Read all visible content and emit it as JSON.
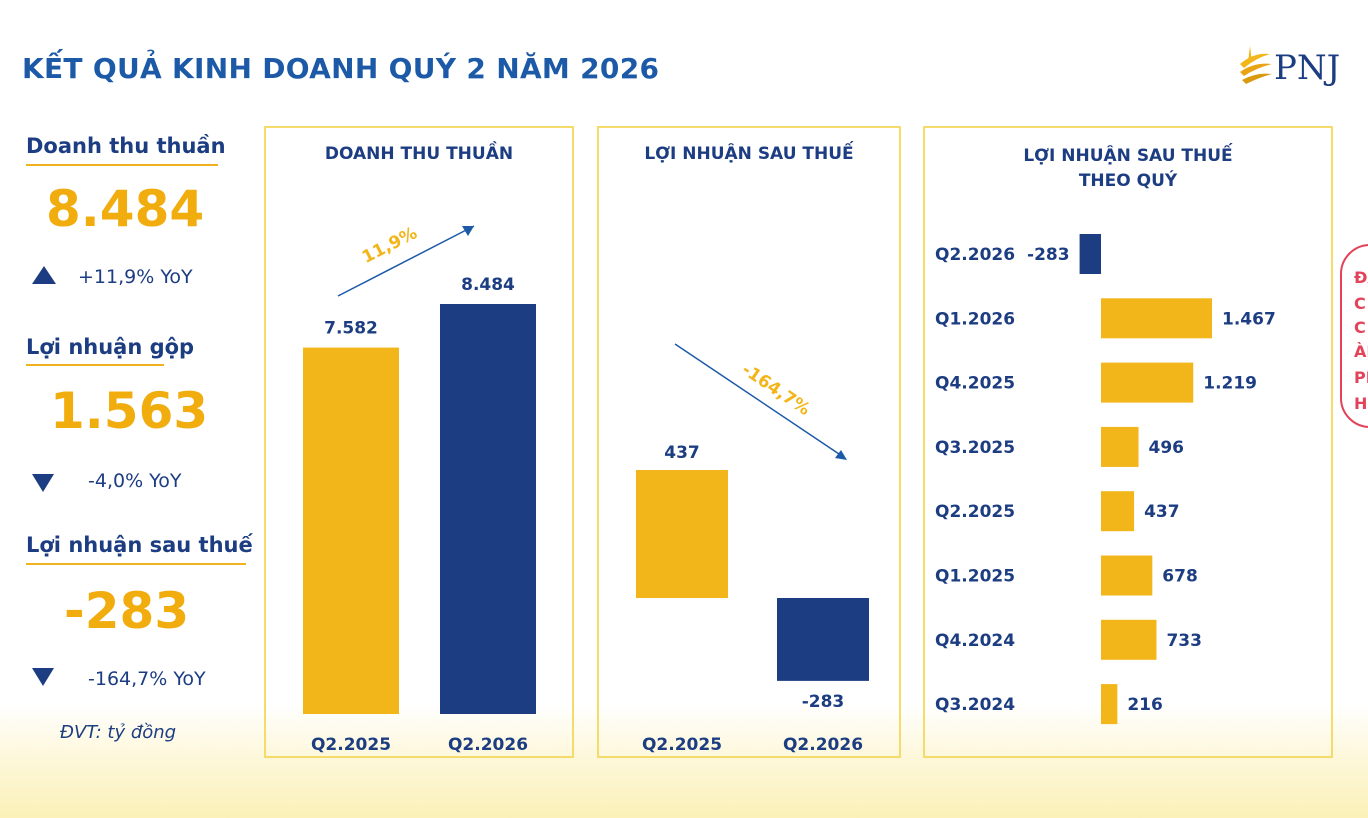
{
  "title": "KẾT QUẢ KINH DOANH QUÝ 2 NĂM 2026",
  "logo": {
    "text": "PNJ",
    "icon": "pnj-sun-logo-icon"
  },
  "colors": {
    "orange": "#F2B51A",
    "navy": "#1D3D82",
    "title_blue": "#1C5AA8",
    "panel_border": "#F5DC6A"
  },
  "metrics": [
    {
      "label": "Doanh thu thuần",
      "value": "8.484",
      "change": "+11,9% YoY",
      "direction": "up"
    },
    {
      "label": "Lợi nhuận gộp",
      "value": "1.563",
      "change": "-4,0% YoY",
      "direction": "down"
    },
    {
      "label": "Lợi nhuận sau thuế",
      "value": "-283",
      "change": "-164,7% YoY",
      "direction": "down"
    }
  ],
  "unit": "ĐVT: tỷ đồng",
  "chart_data": [
    {
      "type": "bar",
      "title": "DOANH THU THUẦN",
      "categories": [
        "Q2.2025",
        "Q2.2026"
      ],
      "values": [
        7582,
        8484
      ],
      "value_labels": [
        "7.582",
        "8.484"
      ],
      "colors": [
        "#F2B51A",
        "#1D3D82"
      ],
      "change_label": "11,9%",
      "change_direction": "up"
    },
    {
      "type": "bar",
      "title": "LỢI NHUẬN SAU THUẾ",
      "categories": [
        "Q2.2025",
        "Q2.2026"
      ],
      "values": [
        437,
        -283
      ],
      "value_labels": [
        "437",
        "-283"
      ],
      "colors": [
        "#F2B51A",
        "#1D3D82"
      ],
      "change_label": "-164,7%",
      "change_direction": "down"
    },
    {
      "type": "bar",
      "orientation": "horizontal",
      "title": "LỢI NHUẬN SAU THUẾ\nTHEO QUÝ",
      "title_lines": [
        "LỢI NHUẬN SAU THUẾ",
        "THEO QUÝ"
      ],
      "categories": [
        "Q2.2026",
        "Q1.2026",
        "Q4.2025",
        "Q3.2025",
        "Q2.2025",
        "Q1.2025",
        "Q4.2024",
        "Q3.2024"
      ],
      "values": [
        -283,
        1467,
        1219,
        496,
        437,
        678,
        733,
        216
      ],
      "value_labels": [
        "-283",
        "1.467",
        "1.219",
        "496",
        "437",
        "678",
        "733",
        "216"
      ],
      "positive_color": "#F2B51A",
      "negative_color": "#1D3D82"
    }
  ],
  "stamp_fragments": [
    "ĐÃ",
    "C",
    "C",
    "ÀNG",
    "PH",
    "H"
  ]
}
